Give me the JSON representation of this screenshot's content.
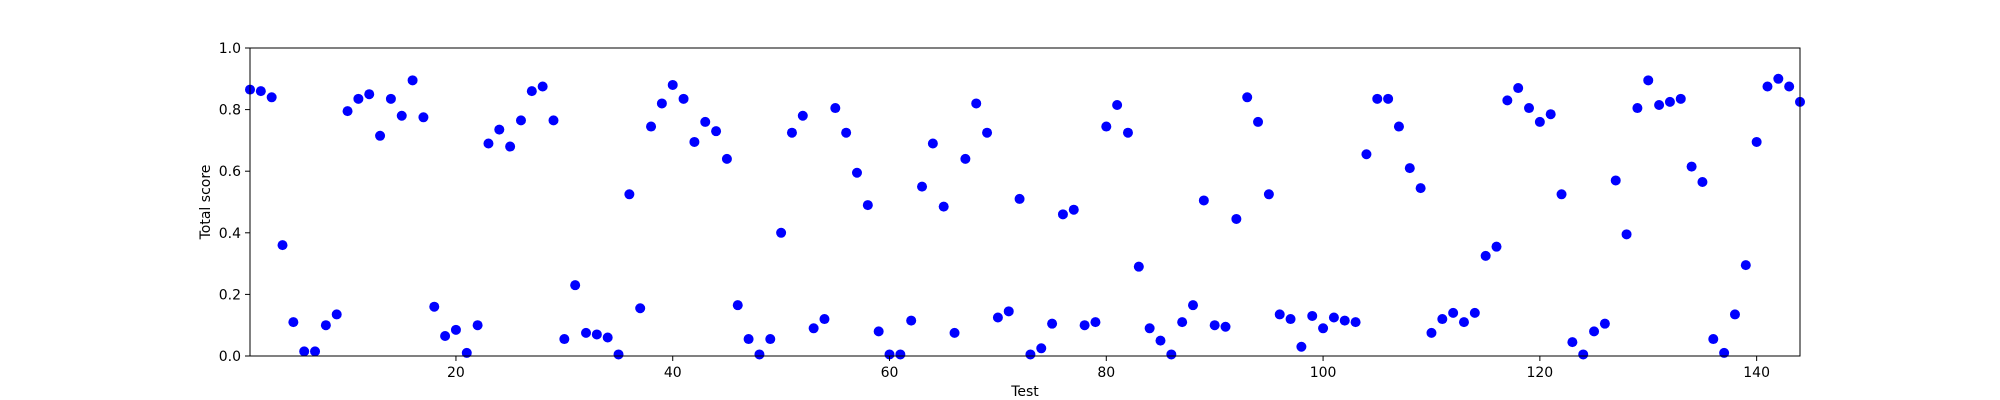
{
  "chart_data": {
    "type": "scatter",
    "title": "",
    "xlabel": "Test",
    "ylabel": "Total score",
    "xlim": [
      1,
      144
    ],
    "ylim": [
      0,
      1
    ],
    "xticks": [
      20,
      40,
      60,
      80,
      100,
      120,
      140
    ],
    "yticks": [
      0.0,
      0.2,
      0.4,
      0.6,
      0.8,
      1.0
    ],
    "ytick_labels": [
      "0.0",
      "0.2",
      "0.4",
      "0.6",
      "0.8",
      "1.0"
    ],
    "grid": false,
    "legend": "none",
    "marker_color": "#0000ff",
    "series": [
      {
        "x": [
          1,
          2,
          3,
          4,
          5,
          6,
          7,
          8,
          9,
          10,
          11,
          12,
          13,
          14,
          15,
          16,
          17,
          18,
          19,
          20,
          21,
          22,
          23,
          24,
          25,
          26,
          27,
          28,
          29,
          30,
          31,
          32,
          33,
          34,
          35,
          36,
          37,
          38,
          39,
          40,
          41,
          42,
          43,
          44,
          45,
          46,
          47,
          48,
          49,
          50,
          51,
          52,
          53,
          54,
          55,
          56,
          57,
          58,
          59,
          60,
          61,
          62,
          63,
          64,
          65,
          66,
          67,
          68,
          69,
          70,
          71,
          72,
          73,
          74,
          75,
          76,
          77,
          78,
          79,
          80,
          81,
          82,
          83,
          84,
          85,
          86,
          87,
          88,
          89,
          90,
          91,
          92,
          93,
          94,
          95,
          96,
          97,
          98,
          99,
          100,
          101,
          102,
          103,
          104,
          105,
          106,
          107,
          108,
          109,
          110,
          111,
          112,
          113,
          114,
          115,
          116,
          117,
          118,
          119,
          120,
          121,
          122,
          123,
          124,
          125,
          126,
          127,
          128,
          129,
          130,
          131,
          132,
          133,
          134,
          135,
          136,
          137,
          138,
          139,
          140,
          141,
          142,
          143,
          144
        ],
        "y": [
          0.865,
          0.86,
          0.84,
          0.36,
          0.11,
          0.015,
          0.015,
          0.1,
          0.135,
          0.795,
          0.835,
          0.85,
          0.715,
          0.835,
          0.78,
          0.895,
          0.775,
          0.16,
          0.065,
          0.085,
          0.01,
          0.1,
          0.69,
          0.735,
          0.68,
          0.765,
          0.86,
          0.875,
          0.765,
          0.055,
          0.23,
          0.075,
          0.07,
          0.06,
          0.005,
          0.525,
          0.155,
          0.745,
          0.82,
          0.88,
          0.835,
          0.695,
          0.76,
          0.73,
          0.64,
          0.165,
          0.055,
          0.005,
          0.055,
          0.4,
          0.725,
          0.78,
          0.09,
          0.12,
          0.805,
          0.725,
          0.595,
          0.49,
          0.08,
          0.005,
          0.005,
          0.115,
          0.55,
          0.69,
          0.485,
          0.075,
          0.64,
          0.82,
          0.725,
          0.125,
          0.145,
          0.51,
          0.005,
          0.025,
          0.105,
          0.46,
          0.475,
          0.1,
          0.11,
          0.745,
          0.815,
          0.725,
          0.29,
          0.09,
          0.05,
          0.005,
          0.11,
          0.165,
          0.505,
          0.1,
          0.095,
          0.445,
          0.84,
          0.76,
          0.525,
          0.135,
          0.12,
          0.03,
          0.13,
          0.09,
          0.125,
          0.115,
          0.11,
          0.655,
          0.835,
          0.835,
          0.745,
          0.61,
          0.545,
          0.075,
          0.12,
          0.14,
          0.11,
          0.14,
          0.325,
          0.355,
          0.83,
          0.87,
          0.805,
          0.76,
          0.785,
          0.525,
          0.045,
          0.005,
          0.08,
          0.105,
          0.57,
          0.395,
          0.805,
          0.895,
          0.815,
          0.825,
          0.835,
          0.615,
          0.565,
          0.055,
          0.01,
          0.135,
          0.295,
          0.695,
          0.875,
          0.9,
          0.875,
          0.825
        ]
      }
    ]
  }
}
